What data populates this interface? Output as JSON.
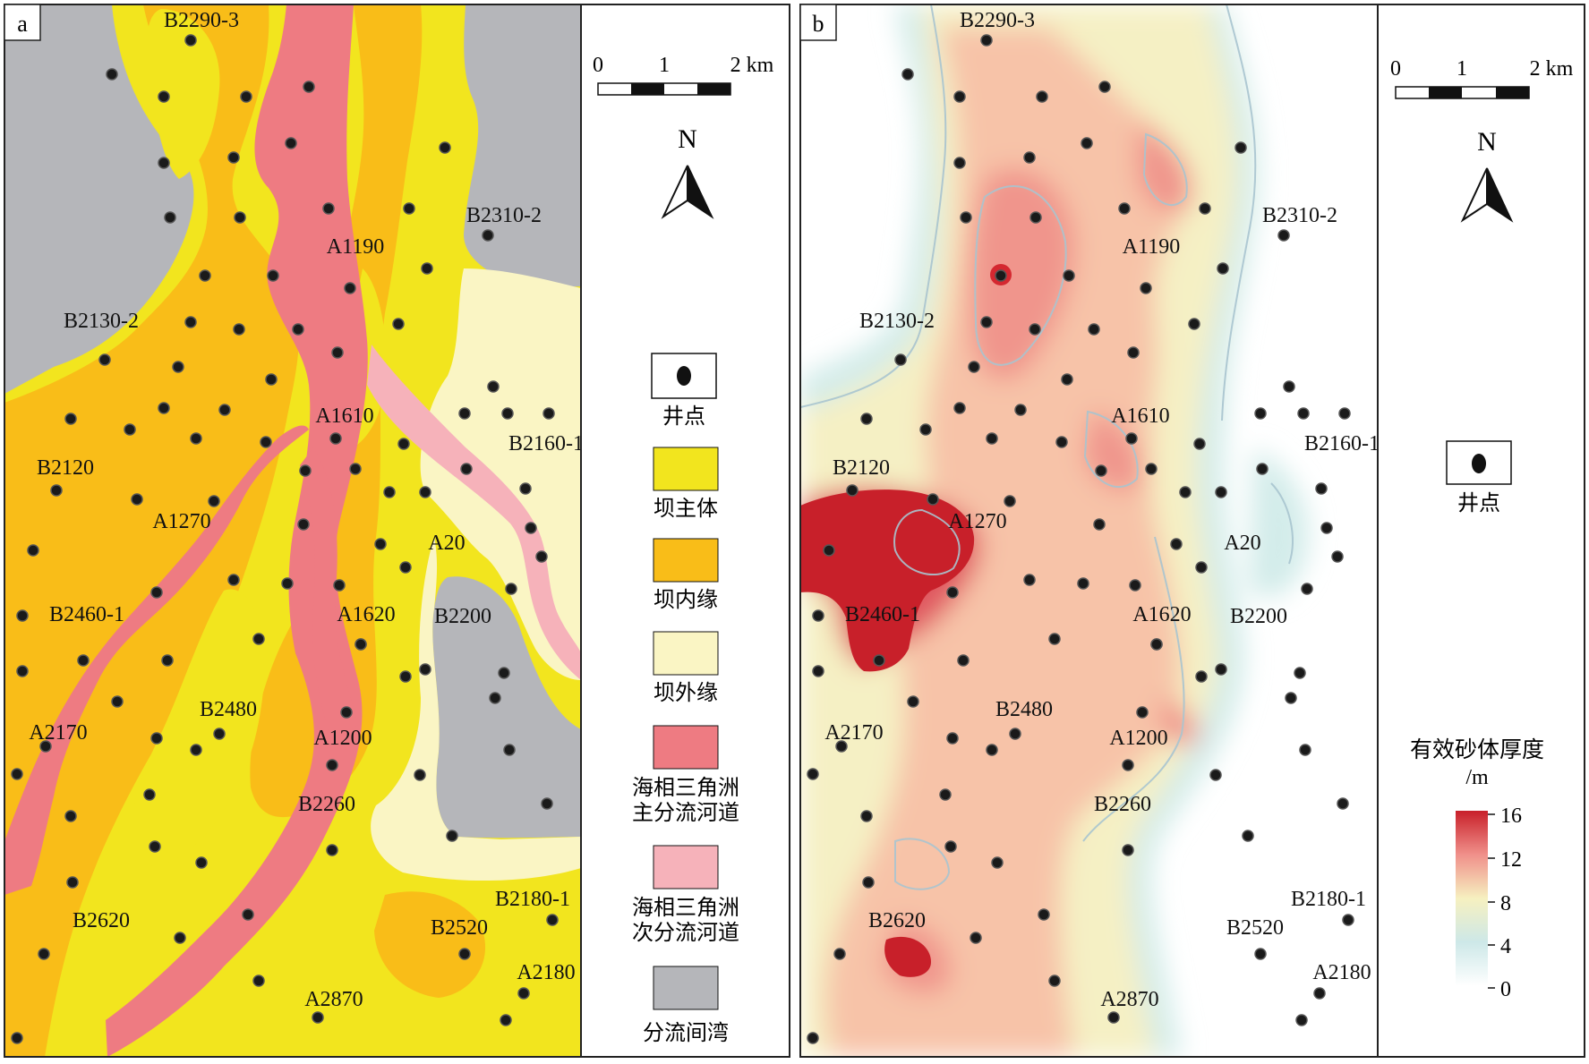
{
  "panel_a": {
    "label": "a",
    "scale": {
      "ticks": [
        "0",
        "1",
        "2 km"
      ]
    },
    "north": "N",
    "legend": [
      {
        "key": "well",
        "label": "井点"
      },
      {
        "key": "bar_main",
        "label": "坝主体",
        "color": "#f2e51e"
      },
      {
        "key": "bar_inner",
        "label": "坝内缘",
        "color": "#f9bd18"
      },
      {
        "key": "bar_outer",
        "label": "坝外缘",
        "color": "#faf5c4"
      },
      {
        "key": "main_channel",
        "label": [
          "海相三角洲",
          "主分流河道"
        ],
        "color": "#ee7b82"
      },
      {
        "key": "sub_channel",
        "label": [
          "海相三角洲",
          "次分流河道"
        ],
        "color": "#f6b2ba"
      },
      {
        "key": "interdistributary_bay",
        "label": "分流间湾",
        "color": "#b5b6ba"
      }
    ]
  },
  "panel_b": {
    "label": "b",
    "scale": {
      "ticks": [
        "0",
        "1",
        "2 km"
      ]
    },
    "north": "N",
    "legend": [
      {
        "key": "well",
        "label": "井点"
      }
    ],
    "colorbar": {
      "title": "有效砂体厚度",
      "unit": "/m",
      "ticks": [
        "16",
        "12",
        "8",
        "4",
        "0"
      ],
      "colors": [
        "#c8202a",
        "#f0908a",
        "#f6f0c0",
        "#cde8e8",
        "#ffffff"
      ]
    }
  },
  "well_labels": [
    "B2290-3",
    "B2310-2",
    "A1190",
    "B2130-2",
    "A1610",
    "B2160-1",
    "B2120",
    "A1270",
    "A20",
    "B2460-1",
    "A1620",
    "B2200",
    "B2480",
    "A2170",
    "A1200",
    "B2260",
    "B2180-1",
    "B2620",
    "B2520",
    "A2180",
    "A2870"
  ]
}
